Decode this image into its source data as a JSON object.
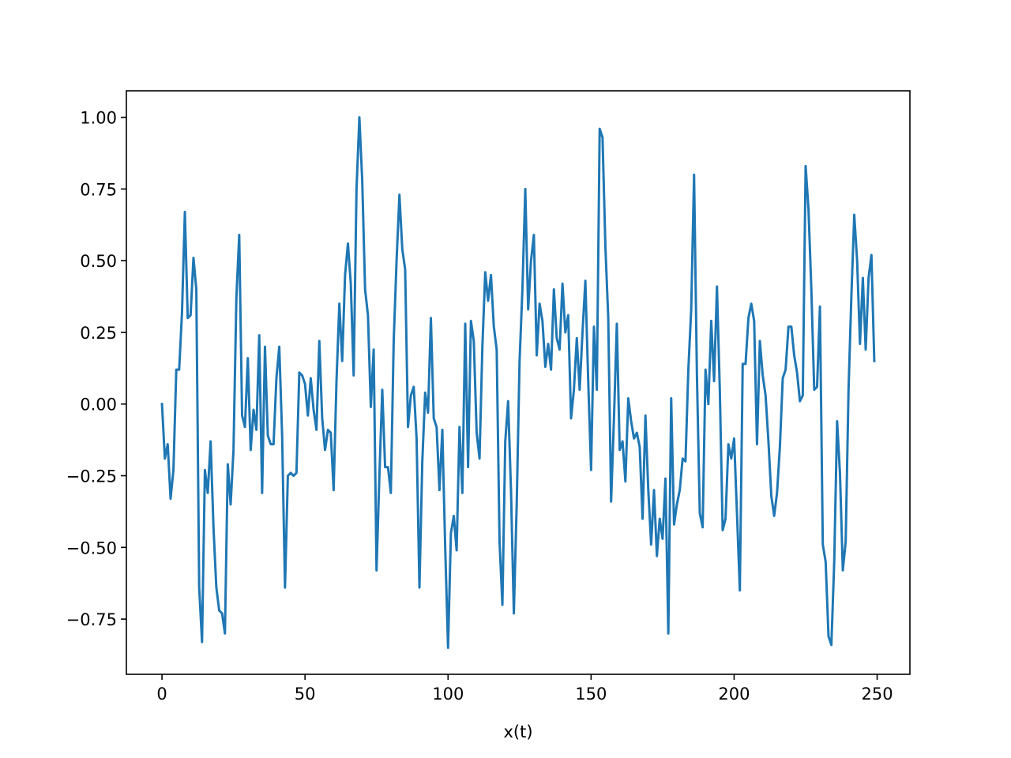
{
  "chart_data": {
    "type": "line",
    "xlabel": "x(t)",
    "x": [
      0,
      1,
      2,
      3,
      4,
      5,
      6,
      7,
      8,
      9,
      10,
      11,
      12,
      13,
      14,
      15,
      16,
      17,
      18,
      19,
      20,
      21,
      22,
      23,
      24,
      25,
      26,
      27,
      28,
      29,
      30,
      31,
      32,
      33,
      34,
      35,
      36,
      37,
      38,
      39,
      40,
      41,
      42,
      43,
      44,
      45,
      46,
      47,
      48,
      49,
      50,
      51,
      52,
      53,
      54,
      55,
      56,
      57,
      58,
      59,
      60,
      61,
      62,
      63,
      64,
      65,
      66,
      67,
      68,
      69,
      70,
      71,
      72,
      73,
      74,
      75,
      76,
      77,
      78,
      79,
      80,
      81,
      82,
      83,
      84,
      85,
      86,
      87,
      88,
      89,
      90,
      91,
      92,
      93,
      94,
      95,
      96,
      97,
      98,
      99,
      100,
      101,
      102,
      103,
      104,
      105,
      106,
      107,
      108,
      109,
      110,
      111,
      112,
      113,
      114,
      115,
      116,
      117,
      118,
      119,
      120,
      121,
      122,
      123,
      124,
      125,
      126,
      127,
      128,
      129,
      130,
      131,
      132,
      133,
      134,
      135,
      136,
      137,
      138,
      139,
      140,
      141,
      142,
      143,
      144,
      145,
      146,
      147,
      148,
      149,
      150,
      151,
      152,
      153,
      154,
      155,
      156,
      157,
      158,
      159,
      160,
      161,
      162,
      163,
      164,
      165,
      166,
      167,
      168,
      169,
      170,
      171,
      172,
      173,
      174,
      175,
      176,
      177,
      178,
      179,
      180,
      181,
      182,
      183,
      184,
      185,
      186,
      187,
      188,
      189,
      190,
      191,
      192,
      193,
      194,
      195,
      196,
      197,
      198,
      199,
      200,
      201,
      202,
      203,
      204,
      205,
      206,
      207,
      208,
      209,
      210,
      211,
      212,
      213,
      214,
      215,
      216,
      217,
      218,
      219,
      220,
      221,
      222,
      223,
      224,
      225,
      226,
      227,
      228,
      229,
      230,
      231,
      232,
      233,
      234,
      235,
      236,
      237,
      238,
      239,
      240,
      241,
      242,
      243,
      244,
      245,
      246,
      247,
      248,
      249
    ],
    "values": [
      0,
      -0.19,
      -0.14,
      -0.33,
      -0.23,
      0.12,
      0.12,
      0.32,
      0.67,
      0.3,
      0.31,
      0.51,
      0.4,
      -0.64,
      -0.83,
      -0.23,
      -0.31,
      -0.13,
      -0.43,
      -0.64,
      -0.72,
      -0.73,
      -0.8,
      -0.21,
      -0.35,
      -0.16,
      0.37,
      0.59,
      -0.04,
      -0.08,
      0.16,
      -0.16,
      -0.02,
      -0.09,
      0.24,
      -0.31,
      0.2,
      -0.11,
      -0.14,
      -0.14,
      0.09,
      0.2,
      -0.11,
      -0.64,
      -0.25,
      -0.24,
      -0.25,
      -0.24,
      0.11,
      0.1,
      0.07,
      -0.04,
      0.09,
      -0.02,
      -0.09,
      0.22,
      -0.05,
      -0.16,
      -0.09,
      -0.1,
      -0.3,
      0.08,
      0.35,
      0.15,
      0.45,
      0.56,
      0.42,
      0.1,
      0.75,
      1.0,
      0.78,
      0.4,
      0.31,
      -0.01,
      0.19,
      -0.58,
      -0.25,
      0.05,
      -0.22,
      -0.22,
      -0.31,
      0.22,
      0.5,
      0.73,
      0.54,
      0.47,
      -0.08,
      0.03,
      0.06,
      -0.12,
      -0.64,
      -0.2,
      0.04,
      -0.03,
      0.3,
      -0.05,
      -0.08,
      -0.3,
      -0.09,
      -0.5,
      -0.85,
      -0.45,
      -0.39,
      -0.51,
      -0.08,
      -0.31,
      0.28,
      -0.22,
      0.29,
      0.22,
      -0.1,
      -0.19,
      0.2,
      0.46,
      0.36,
      0.45,
      0.27,
      0.19,
      -0.48,
      -0.7,
      -0.13,
      0.01,
      -0.3,
      -0.73,
      -0.35,
      0.15,
      0.4,
      0.75,
      0.33,
      0.5,
      0.59,
      0.17,
      0.35,
      0.29,
      0.13,
      0.21,
      0.12,
      0.4,
      0.23,
      0.19,
      0.42,
      0.25,
      0.31,
      -0.05,
      0.05,
      0.23,
      0.05,
      0.25,
      0.43,
      0.08,
      -0.23,
      0.27,
      0.05,
      0.96,
      0.93,
      0.55,
      0.3,
      -0.34,
      -0.05,
      0.28,
      -0.16,
      -0.13,
      -0.27,
      0.02,
      -0.06,
      -0.12,
      -0.1,
      -0.15,
      -0.4,
      -0.04,
      -0.3,
      -0.49,
      -0.3,
      -0.53,
      -0.4,
      -0.47,
      -0.26,
      -0.8,
      0.02,
      -0.42,
      -0.35,
      -0.3,
      -0.19,
      -0.2,
      0.12,
      0.33,
      0.8,
      0.1,
      -0.38,
      -0.43,
      0.12,
      0.0,
      0.29,
      0.08,
      0.41,
      0.05,
      -0.44,
      -0.4,
      -0.14,
      -0.19,
      -0.12,
      -0.38,
      -0.65,
      0.14,
      0.14,
      0.3,
      0.35,
      0.29,
      -0.14,
      0.22,
      0.1,
      0.03,
      -0.13,
      -0.32,
      -0.39,
      -0.31,
      -0.15,
      0.09,
      0.12,
      0.27,
      0.27,
      0.17,
      0.11,
      0.01,
      0.03,
      0.83,
      0.68,
      0.4,
      0.05,
      0.06,
      0.34,
      -0.49,
      -0.55,
      -0.81,
      -0.84,
      -0.55,
      -0.06,
      -0.24,
      -0.58,
      -0.48,
      0.05,
      0.38,
      0.66,
      0.5,
      0.21,
      0.44,
      0.19,
      0.44,
      0.52,
      0.15
    ],
    "color": "#1f77b4",
    "xlim": [
      -12.45,
      261.45
    ],
    "ylim": [
      -0.9425,
      1.0925
    ],
    "xticks": [
      0,
      50,
      100,
      150,
      200,
      250
    ],
    "yticks": [
      {
        "value": -0.75,
        "label": "−0.75"
      },
      {
        "value": -0.5,
        "label": "−0.50"
      },
      {
        "value": -0.25,
        "label": "−0.25"
      },
      {
        "value": 0,
        "label": "0.00"
      },
      {
        "value": 0.25,
        "label": "0.25"
      },
      {
        "value": 0.5,
        "label": "0.50"
      },
      {
        "value": 0.75,
        "label": "0.75"
      },
      {
        "value": 1,
        "label": "1.00"
      }
    ],
    "grid": false
  }
}
